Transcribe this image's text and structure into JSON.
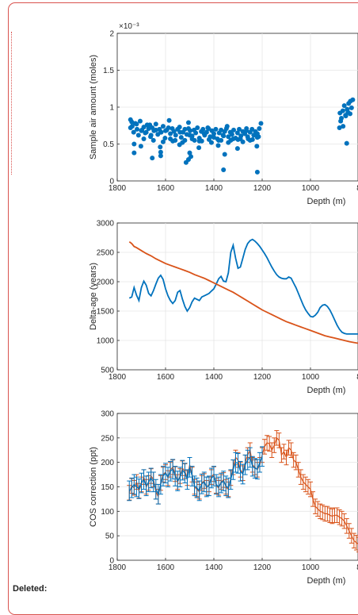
{
  "deleted_label": "Deleted:",
  "chart_data": [
    {
      "type": "scatter",
      "ylabel": "Sample air amount (moles)",
      "xlabel": "Depth (m)",
      "exponent_label": "×10⁻³",
      "xlim": [
        1800,
        800
      ],
      "ylim": [
        0,
        2
      ],
      "x_ticks": [
        "1800",
        "1600",
        "1400",
        "1200",
        "1000",
        "8"
      ],
      "y_ticks": [
        "0",
        "0.5",
        "1",
        "1.5",
        "2"
      ],
      "grid": true,
      "color": "#0072BD",
      "series": [
        {
          "x": [
            1745,
            1738,
            1732,
            1725,
            1718,
            1712,
            1705,
            1698,
            1690,
            1684,
            1676,
            1670,
            1662,
            1655,
            1648,
            1640,
            1632,
            1625,
            1618,
            1610,
            1602,
            1595,
            1588,
            1580,
            1572,
            1565,
            1558,
            1550,
            1542,
            1535,
            1528,
            1520,
            1512,
            1505,
            1498,
            1490,
            1482,
            1475,
            1468,
            1460,
            1452,
            1445,
            1438,
            1430,
            1422,
            1415,
            1408,
            1400,
            1392,
            1385,
            1378,
            1370,
            1362,
            1355,
            1348,
            1340,
            1332,
            1325,
            1318,
            1310,
            1302,
            1295,
            1288,
            1280,
            1272,
            1265,
            1258,
            1250,
            1242,
            1235,
            1228,
            1220,
            1212,
            1205,
            1740,
            1720,
            1700,
            1680,
            1660,
            1640,
            1620,
            1600,
            1580,
            1560,
            1540,
            1520,
            1500,
            1480,
            1460,
            1440,
            1420,
            1400,
            1380,
            1360,
            1340,
            1320,
            1300,
            1280,
            1260,
            1240,
            1220,
            1730,
            1690,
            1650,
            1610,
            1570,
            1530,
            1490,
            1450,
            1410,
            1370,
            1330,
            1290,
            1250,
            1745,
            1665,
            1585,
            1505,
            1425,
            1345,
            1265,
            1702,
            1622,
            1542,
            1462,
            1382,
            1302,
            1222,
            1655,
            1505,
            1355,
            1215,
            1730,
            1620,
            1500,
            878,
            872,
            866,
            860,
            854,
            848,
            842,
            836,
            830,
            875,
            865,
            855,
            845,
            835,
            880,
            850,
            825
          ],
          "y": [
            0.72,
            0.74,
            0.66,
            0.78,
            0.7,
            0.62,
            0.81,
            0.69,
            0.73,
            0.65,
            0.76,
            0.71,
            0.6,
            0.72,
            0.68,
            0.77,
            0.63,
            0.7,
            0.66,
            0.74,
            0.58,
            0.69,
            0.72,
            0.64,
            0.71,
            0.67,
            0.62,
            0.7,
            0.73,
            0.59,
            0.66,
            0.7,
            0.63,
            0.71,
            0.68,
            0.61,
            0.69,
            0.65,
            0.72,
            0.58,
            0.67,
            0.7,
            0.62,
            0.66,
            0.71,
            0.6,
            0.68,
            0.64,
            0.7,
            0.57,
            0.65,
            0.69,
            0.62,
            0.67,
            0.71,
            0.6,
            0.66,
            0.63,
            0.69,
            0.58,
            0.65,
            0.7,
            0.61,
            0.67,
            0.64,
            0.68,
            0.57,
            0.66,
            0.7,
            0.62,
            0.67,
            0.64,
            0.71,
            0.78,
            0.8,
            0.77,
            0.68,
            0.66,
            0.62,
            0.69,
            0.66,
            0.68,
            0.57,
            0.55,
            0.66,
            0.55,
            0.62,
            0.55,
            0.54,
            0.64,
            0.56,
            0.59,
            0.55,
            0.61,
            0.52,
            0.57,
            0.56,
            0.53,
            0.6,
            0.56,
            0.59,
            0.5,
            0.57,
            0.55,
            0.53,
            0.54,
            0.52,
            0.57,
            0.54,
            0.52,
            0.55,
            0.55,
            0.57,
            0.55,
            0.83,
            0.76,
            0.82,
            0.79,
            0.72,
            0.74,
            0.71,
            0.47,
            0.46,
            0.49,
            0.45,
            0.48,
            0.44,
            0.47,
            0.31,
            0.29,
            0.36,
            0.6,
            0.38,
            0.34,
            0.38,
            0.92,
            0.85,
            0.95,
            1.02,
            0.88,
            0.97,
            1.05,
            0.91,
            0.99,
            0.81,
            0.74,
            0.89,
            0.93,
            1.08,
            0.72,
            0.51,
            1.1
          ]
        },
        {
          "x": [
            1620,
            1515,
            1495,
            1360,
            1220
          ],
          "y": [
            0.39,
            0.25,
            0.33,
            0.15,
            0.12
          ]
        }
      ]
    },
    {
      "type": "line",
      "ylabel": "Delta-age (years)",
      "xlabel": "Depth (m)",
      "xlim": [
        1800,
        800
      ],
      "ylim": [
        500,
        3000
      ],
      "x_ticks": [
        "1800",
        "1600",
        "1400",
        "1200",
        "1000",
        "8"
      ],
      "y_ticks": [
        "500",
        "1000",
        "1500",
        "2000",
        "2500",
        "3000"
      ],
      "ylabel_color": "#0072BD",
      "grid": true,
      "series": [
        {
          "color": "#0072BD",
          "x": [
            1750,
            1740,
            1730,
            1720,
            1710,
            1700,
            1690,
            1680,
            1670,
            1660,
            1650,
            1640,
            1630,
            1620,
            1610,
            1600,
            1590,
            1580,
            1570,
            1560,
            1550,
            1540,
            1530,
            1520,
            1510,
            1500,
            1490,
            1480,
            1470,
            1460,
            1450,
            1440,
            1430,
            1420,
            1410,
            1400,
            1390,
            1380,
            1370,
            1360,
            1350,
            1340,
            1330,
            1320,
            1310,
            1300,
            1290,
            1280,
            1270,
            1260,
            1250,
            1240,
            1230,
            1220,
            1210,
            1200,
            1190,
            1180,
            1170,
            1160,
            1150,
            1140,
            1130,
            1120,
            1110,
            1100,
            1090,
            1080,
            1070,
            1060,
            1050,
            1040,
            1030,
            1020,
            1010,
            1000,
            990,
            980,
            970,
            960,
            950,
            940,
            930,
            920,
            910,
            900,
            890,
            880,
            870,
            860,
            850,
            840,
            830,
            820,
            810,
            800
          ],
          "y": [
            1720,
            1740,
            1900,
            1770,
            1680,
            1900,
            2010,
            1940,
            1800,
            1760,
            1850,
            1960,
            2060,
            2110,
            2040,
            1880,
            1760,
            1680,
            1630,
            1680,
            1820,
            1850,
            1700,
            1580,
            1500,
            1560,
            1660,
            1720,
            1700,
            1680,
            1740,
            1760,
            1780,
            1800,
            1840,
            1880,
            1960,
            2050,
            2090,
            2010,
            2000,
            2150,
            2500,
            2620,
            2400,
            2230,
            2250,
            2400,
            2550,
            2650,
            2700,
            2720,
            2690,
            2650,
            2600,
            2540,
            2480,
            2410,
            2330,
            2250,
            2180,
            2120,
            2080,
            2060,
            2050,
            2050,
            2080,
            2060,
            1980,
            1900,
            1800,
            1700,
            1600,
            1520,
            1460,
            1410,
            1400,
            1430,
            1480,
            1560,
            1600,
            1610,
            1580,
            1520,
            1440,
            1350,
            1260,
            1190,
            1140,
            1120,
            1110,
            1110,
            1110,
            1110,
            1110,
            1110
          ]
        },
        {
          "color": "#D95319",
          "x": [
            1750,
            1740,
            1730,
            1720,
            1700,
            1680,
            1660,
            1640,
            1620,
            1600,
            1580,
            1560,
            1540,
            1520,
            1500,
            1480,
            1460,
            1440,
            1420,
            1400,
            1380,
            1360,
            1340,
            1320,
            1300,
            1280,
            1260,
            1240,
            1220,
            1200,
            1180,
            1160,
            1140,
            1120,
            1100,
            1080,
            1060,
            1040,
            1020,
            1000,
            980,
            960,
            940,
            920,
            900,
            880,
            860,
            840,
            820,
            800
          ],
          "y": [
            2680,
            2650,
            2600,
            2580,
            2530,
            2480,
            2440,
            2390,
            2350,
            2310,
            2280,
            2250,
            2220,
            2190,
            2160,
            2120,
            2090,
            2060,
            2020,
            1980,
            1940,
            1900,
            1860,
            1820,
            1770,
            1720,
            1670,
            1620,
            1570,
            1520,
            1480,
            1440,
            1400,
            1360,
            1320,
            1290,
            1260,
            1230,
            1200,
            1170,
            1140,
            1110,
            1080,
            1060,
            1040,
            1020,
            1000,
            980,
            965,
            950
          ]
        }
      ]
    },
    {
      "type": "line",
      "ylabel": "COS correction (ppt)",
      "xlabel": "Depth (m)",
      "xlim": [
        1800,
        800
      ],
      "ylim": [
        0,
        300
      ],
      "x_ticks": [
        "1800",
        "1600",
        "1400",
        "1200",
        "1000",
        "8"
      ],
      "y_ticks": [
        "0",
        "50",
        "100",
        "150",
        "200",
        "250",
        "300"
      ],
      "grid": true,
      "error_bars": true,
      "series": [
        {
          "color": "#D95319",
          "x": [
            1750,
            1740,
            1730,
            1720,
            1710,
            1700,
            1690,
            1680,
            1670,
            1660,
            1650,
            1640,
            1630,
            1620,
            1610,
            1600,
            1590,
            1580,
            1570,
            1560,
            1550,
            1540,
            1530,
            1520,
            1510,
            1500,
            1490,
            1480,
            1470,
            1460,
            1450,
            1440,
            1430,
            1420,
            1410,
            1400,
            1390,
            1380,
            1370,
            1360,
            1350,
            1340,
            1330,
            1320,
            1310,
            1300,
            1290,
            1280,
            1270,
            1260,
            1250,
            1240,
            1230,
            1220,
            1210,
            1200,
            1190,
            1180,
            1170,
            1160,
            1150,
            1140,
            1130,
            1120,
            1110,
            1100,
            1090,
            1080,
            1070,
            1060,
            1050,
            1040,
            1030,
            1020,
            1010,
            1000,
            990,
            980,
            970,
            960,
            950,
            940,
            930,
            920,
            910,
            900,
            890,
            880,
            870,
            860,
            850,
            840,
            830,
            820,
            810,
            800
          ],
          "y": [
            138,
            152,
            148,
            160,
            142,
            155,
            170,
            150,
            158,
            172,
            165,
            140,
            130,
            158,
            175,
            180,
            168,
            185,
            190,
            176,
            160,
            172,
            188,
            182,
            168,
            195,
            175,
            150,
            145,
            140,
            158,
            162,
            148,
            155,
            170,
            176,
            152,
            148,
            160,
            164,
            150,
            145,
            168,
            190,
            210,
            205,
            185,
            178,
            200,
            215,
            225,
            195,
            190,
            185,
            195,
            215,
            232,
            240,
            238,
            225,
            235,
            250,
            245,
            215,
            222,
            210,
            230,
            225,
            205,
            200,
            185,
            170,
            160,
            155,
            150,
            145,
            125,
            110,
            105,
            100,
            98,
            95,
            95,
            92,
            90,
            92,
            92,
            88,
            85,
            80,
            70,
            60,
            50,
            40,
            36,
            32
          ],
          "err": 15
        },
        {
          "color": "#0072BD",
          "x": [
            1750,
            1740,
            1730,
            1720,
            1710,
            1700,
            1690,
            1680,
            1670,
            1660,
            1650,
            1640,
            1630,
            1620,
            1610,
            1600,
            1590,
            1580,
            1570,
            1560,
            1550,
            1540,
            1530,
            1520,
            1510,
            1500,
            1490,
            1480,
            1470,
            1460,
            1450,
            1440,
            1430,
            1420,
            1410,
            1400,
            1390,
            1380,
            1370,
            1360,
            1350,
            1340,
            1330,
            1320,
            1310,
            1300,
            1290,
            1280,
            1270,
            1260,
            1250,
            1240,
            1230,
            1220,
            1210,
            1200
          ],
          "y": [
            142,
            148,
            155,
            150,
            146,
            158,
            165,
            152,
            160,
            168,
            160,
            145,
            135,
            155,
            172,
            178,
            170,
            182,
            186,
            172,
            162,
            170,
            184,
            178,
            165,
            190,
            172,
            152,
            148,
            142,
            156,
            160,
            150,
            152,
            168,
            172,
            155,
            150,
            158,
            162,
            152,
            148,
            165,
            185,
            200,
            198,
            182,
            176,
            195,
            205,
            210,
            192,
            188,
            186,
            200,
            212
          ],
          "err": 20
        }
      ]
    }
  ]
}
